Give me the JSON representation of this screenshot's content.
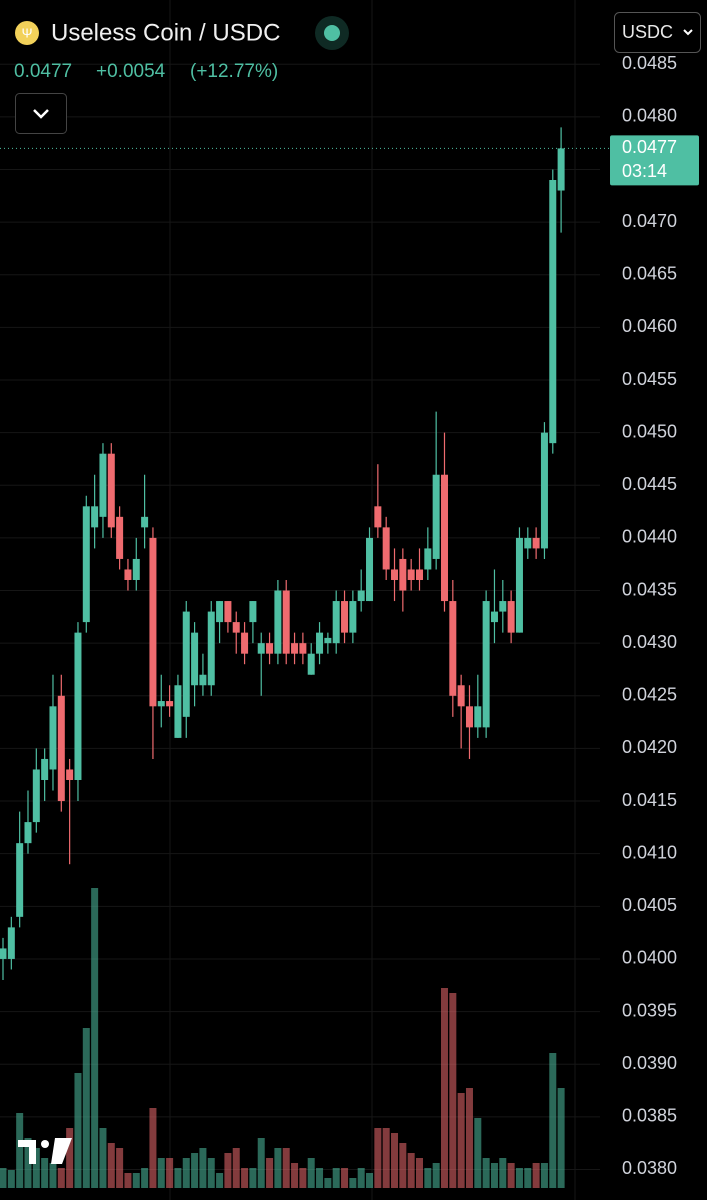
{
  "header": {
    "title": "Useless Coin / USDC",
    "price": "0.0477",
    "change": "+0.0054",
    "change_pct": "(+12.77%)",
    "quote": "USDC"
  },
  "chart_data": {
    "type": "candlestick",
    "up_color": "#4fbfa3",
    "down_color": "#ef6b6f",
    "open": [
      0.04,
      0.04,
      0.0404,
      0.0411,
      0.0413,
      0.0417,
      0.0418,
      0.0425,
      0.0418,
      0.0417,
      0.0432,
      0.0441,
      0.0442,
      0.0448,
      0.0442,
      0.0437,
      0.0436,
      0.0441,
      0.044,
      0.0424,
      0.04245,
      0.0421,
      0.0423,
      0.0426,
      0.0426,
      0.0426,
      0.0432,
      0.0434,
      0.0432,
      0.0431,
      0.0432,
      0.0429,
      0.043,
      0.0429,
      0.0435,
      0.043,
      0.043,
      0.0427,
      0.0429,
      0.043,
      0.043,
      0.0434,
      0.0431,
      0.0434,
      0.0434,
      0.0443,
      0.0441,
      0.0437,
      0.0438,
      0.0437,
      0.0437,
      0.0437,
      0.0438,
      0.0446,
      0.0434,
      0.0426,
      0.0424,
      0.0422,
      0.0422,
      0.0432,
      0.0433,
      0.0434,
      0.0431,
      0.0439,
      0.044,
      0.0439,
      0.0449,
      0.0473
    ],
    "high": [
      0.0402,
      0.0404,
      0.0414,
      0.0416,
      0.042,
      0.042,
      0.0427,
      0.0427,
      0.0419,
      0.0432,
      0.0444,
      0.0446,
      0.0449,
      0.0449,
      0.0443,
      0.0438,
      0.044,
      0.0446,
      0.0441,
      0.0427,
      0.0426,
      0.0427,
      0.0434,
      0.0432,
      0.0429,
      0.0434,
      0.0434,
      0.0434,
      0.0433,
      0.0432,
      0.0434,
      0.0431,
      0.0431,
      0.0436,
      0.0436,
      0.0431,
      0.0431,
      0.043,
      0.0432,
      0.0431,
      0.0435,
      0.0435,
      0.0435,
      0.0437,
      0.0441,
      0.0447,
      0.0442,
      0.0439,
      0.0439,
      0.0438,
      0.0439,
      0.0441,
      0.0452,
      0.045,
      0.0436,
      0.0427,
      0.0426,
      0.0427,
      0.0435,
      0.0437,
      0.0436,
      0.0435,
      0.0441,
      0.0441,
      0.0441,
      0.0451,
      0.0475,
      0.0479
    ],
    "low": [
      0.0398,
      0.0399,
      0.0403,
      0.041,
      0.0412,
      0.0415,
      0.0416,
      0.0414,
      0.0409,
      0.0415,
      0.0431,
      0.0439,
      0.044,
      0.044,
      0.0437,
      0.0435,
      0.0435,
      0.0439,
      0.0419,
      0.0422,
      0.0423,
      0.0421,
      0.0421,
      0.0424,
      0.0425,
      0.0425,
      0.043,
      0.0431,
      0.0429,
      0.0428,
      0.043,
      0.0425,
      0.0428,
      0.0428,
      0.0428,
      0.0428,
      0.0428,
      0.0427,
      0.0428,
      0.0429,
      0.0429,
      0.043,
      0.043,
      0.0433,
      0.0434,
      0.044,
      0.0436,
      0.0434,
      0.0433,
      0.0435,
      0.0435,
      0.0436,
      0.0437,
      0.0433,
      0.0423,
      0.042,
      0.0419,
      0.0421,
      0.0421,
      0.043,
      0.0431,
      0.043,
      0.0431,
      0.0438,
      0.0438,
      0.0438,
      0.0448,
      0.0469
    ],
    "close": [
      0.0401,
      0.0403,
      0.0411,
      0.0413,
      0.0418,
      0.0419,
      0.0424,
      0.0415,
      0.0417,
      0.0431,
      0.0443,
      0.0443,
      0.0448,
      0.0441,
      0.0438,
      0.0436,
      0.0438,
      0.0442,
      0.0424,
      0.04245,
      0.0424,
      0.0426,
      0.0433,
      0.0431,
      0.0427,
      0.0433,
      0.0434,
      0.0432,
      0.0431,
      0.0429,
      0.0434,
      0.043,
      0.0429,
      0.0435,
      0.0429,
      0.0429,
      0.0429,
      0.0429,
      0.0431,
      0.04305,
      0.0434,
      0.0431,
      0.0434,
      0.0435,
      0.044,
      0.0441,
      0.0437,
      0.0436,
      0.0435,
      0.0436,
      0.0436,
      0.0439,
      0.0446,
      0.0434,
      0.0425,
      0.0424,
      0.0422,
      0.0424,
      0.0434,
      0.0433,
      0.0434,
      0.0431,
      0.044,
      0.044,
      0.0439,
      0.045,
      0.0474,
      0.0477
    ],
    "volume": [
      20,
      18,
      75,
      50,
      40,
      30,
      25,
      20,
      60,
      115,
      160,
      300,
      60,
      45,
      40,
      15,
      15,
      20,
      80,
      30,
      30,
      20,
      30,
      35,
      40,
      30,
      15,
      35,
      40,
      20,
      20,
      50,
      30,
      40,
      40,
      25,
      20,
      30,
      20,
      10,
      20,
      20,
      10,
      20,
      15,
      60,
      60,
      55,
      45,
      35,
      30,
      20,
      25,
      200,
      195,
      95,
      100,
      70,
      30,
      25,
      30,
      25,
      20,
      20,
      25,
      25,
      135,
      100
    ],
    "ylim": [
      0.03771,
      0.04911
    ],
    "yticks": [
      {
        "value": 0.038,
        "label": "0.0380"
      },
      0.0385,
      {
        "value": 0.039,
        "label": "0.0390"
      },
      0.0395,
      {
        "value": 0.04,
        "label": "0.0400"
      },
      0.0405,
      {
        "value": 0.041,
        "label": "0.0410"
      },
      0.0415,
      {
        "value": 0.042,
        "label": "0.0420"
      },
      0.0425,
      {
        "value": 0.043,
        "label": "0.0430"
      },
      0.0435,
      {
        "value": 0.044,
        "label": "0.0440"
      },
      0.0445,
      {
        "value": 0.045,
        "label": "0.0450"
      },
      0.0455,
      {
        "value": 0.046,
        "label": "0.0460"
      },
      0.0465,
      {
        "value": 0.047,
        "label": "0.0470"
      },
      0.0475,
      {
        "value": 0.048,
        "label": "0.0480"
      },
      0.0485
    ],
    "grid": true,
    "last_price": 0.0477,
    "countdown": "03:14"
  }
}
